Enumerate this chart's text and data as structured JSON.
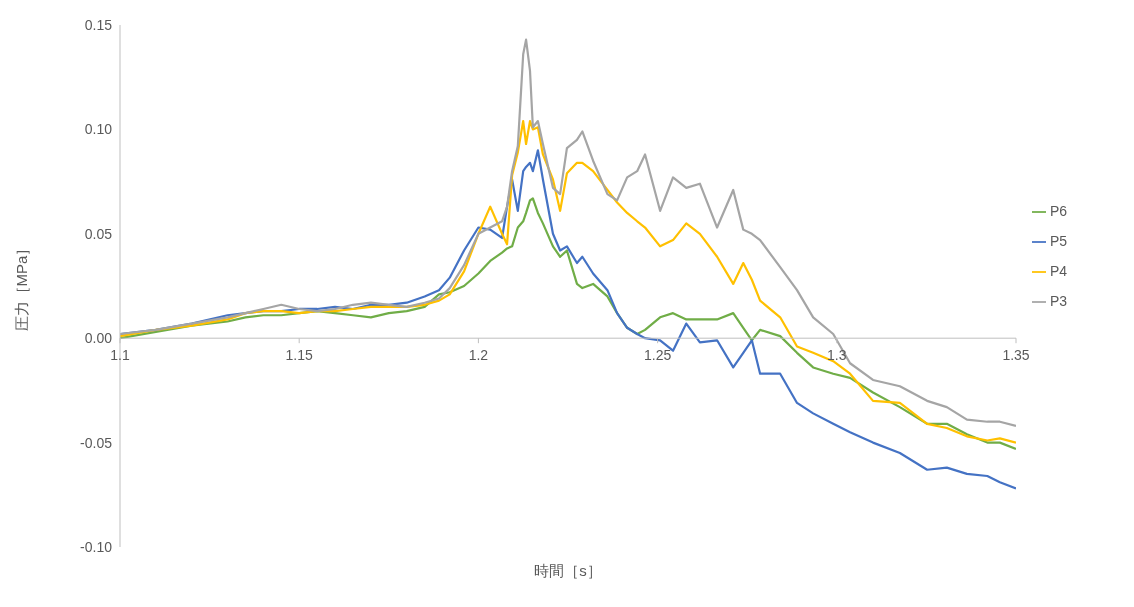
{
  "chart_data": {
    "type": "line",
    "xlabel": "時間［s］",
    "ylabel": "圧力［MPa］",
    "legend": "right",
    "xlim": [
      1.1,
      1.35
    ],
    "xticks": [
      1.1,
      1.15,
      1.2,
      1.25,
      1.3,
      1.35
    ],
    "ylim": [
      -0.1,
      0.15
    ],
    "yticks": [
      {
        "value": -0.1,
        "label": "-0.10"
      },
      {
        "value": -0.05,
        "label": "-0.05"
      },
      {
        "value": 0,
        "label": "0.00"
      },
      {
        "value": 0.05,
        "label": "0.05"
      },
      {
        "value": 0.1,
        "label": "0.10"
      },
      {
        "value": 0.15,
        "label": "0.15"
      }
    ],
    "x": [
      1.1,
      1.11,
      1.12,
      1.13,
      1.135,
      1.14,
      1.145,
      1.15,
      1.155,
      1.16,
      1.165,
      1.17,
      1.175,
      1.18,
      1.185,
      1.189,
      1.192,
      1.196,
      1.2,
      1.2033,
      1.2066,
      1.208,
      1.2094,
      1.211,
      1.2125,
      1.2133,
      1.2144,
      1.2152,
      1.2166,
      1.218,
      1.2208,
      1.2228,
      1.2247,
      1.2275,
      1.229,
      1.232,
      1.236,
      1.2387,
      1.2415,
      1.2443,
      1.2465,
      1.2507,
      1.2543,
      1.258,
      1.2618,
      1.2666,
      1.2711,
      1.2739,
      1.2763,
      1.2786,
      1.2842,
      1.2889,
      1.2934,
      1.299,
      1.3037,
      1.3101,
      1.3176,
      1.3252,
      1.3307,
      1.3363,
      1.342,
      1.3455,
      1.35
    ],
    "series": [
      {
        "name": "P6",
        "color": "#70ad47",
        "values": [
          0.0,
          0.003,
          0.006,
          0.008,
          0.01,
          0.011,
          0.011,
          0.012,
          0.013,
          0.012,
          0.011,
          0.01,
          0.012,
          0.013,
          0.015,
          0.021,
          0.022,
          0.025,
          0.031,
          0.037,
          0.041,
          0.043,
          0.044,
          0.053,
          0.056,
          0.06,
          0.066,
          0.067,
          0.06,
          0.055,
          0.044,
          0.039,
          0.042,
          0.026,
          0.024,
          0.026,
          0.02,
          0.012,
          0.005,
          0.002,
          0.004,
          0.01,
          0.012,
          0.009,
          0.009,
          0.009,
          0.012,
          0.005,
          -0.001,
          0.004,
          0.001,
          -0.007,
          -0.014,
          -0.017,
          -0.019,
          -0.026,
          -0.033,
          -0.041,
          -0.041,
          -0.046,
          -0.05,
          -0.05,
          -0.053
        ]
      },
      {
        "name": "P5",
        "color": "#4472c4",
        "values": [
          0.002,
          0.004,
          0.007,
          0.011,
          0.012,
          0.013,
          0.013,
          0.014,
          0.014,
          0.015,
          0.014,
          0.016,
          0.016,
          0.017,
          0.02,
          0.023,
          0.029,
          0.042,
          0.053,
          0.052,
          0.048,
          0.063,
          0.076,
          0.061,
          0.08,
          0.082,
          0.084,
          0.08,
          0.09,
          0.076,
          0.05,
          0.042,
          0.044,
          0.036,
          0.039,
          0.031,
          0.023,
          0.012,
          0.005,
          0.002,
          0.0,
          -0.001,
          -0.006,
          0.007,
          -0.002,
          -0.001,
          -0.014,
          -0.007,
          -0.001,
          -0.017,
          -0.017,
          -0.031,
          -0.036,
          -0.041,
          -0.045,
          -0.05,
          -0.055,
          -0.063,
          -0.062,
          -0.065,
          -0.066,
          -0.069,
          -0.072
        ]
      },
      {
        "name": "P4",
        "color": "#ffc000",
        "values": [
          0.001,
          0.004,
          0.006,
          0.009,
          0.012,
          0.013,
          0.013,
          0.012,
          0.013,
          0.013,
          0.014,
          0.015,
          0.015,
          0.015,
          0.016,
          0.018,
          0.021,
          0.032,
          0.05,
          0.063,
          0.05,
          0.045,
          0.078,
          0.089,
          0.104,
          0.093,
          0.104,
          0.1,
          0.101,
          0.088,
          0.076,
          0.061,
          0.079,
          0.084,
          0.084,
          0.08,
          0.071,
          0.065,
          0.06,
          0.056,
          0.053,
          0.044,
          0.047,
          0.055,
          0.05,
          0.039,
          0.026,
          0.036,
          0.028,
          0.018,
          0.01,
          -0.004,
          -0.007,
          -0.011,
          -0.017,
          -0.03,
          -0.031,
          -0.041,
          -0.043,
          -0.047,
          -0.049,
          -0.048,
          -0.05
        ]
      },
      {
        "name": "P3",
        "color": "#a5a5a5",
        "values": [
          0.002,
          0.004,
          0.007,
          0.01,
          0.012,
          0.014,
          0.016,
          0.014,
          0.013,
          0.014,
          0.016,
          0.017,
          0.016,
          0.015,
          0.017,
          0.019,
          0.024,
          0.035,
          0.05,
          0.053,
          0.056,
          0.063,
          0.08,
          0.092,
          0.136,
          0.143,
          0.128,
          0.101,
          0.104,
          0.093,
          0.072,
          0.069,
          0.091,
          0.095,
          0.099,
          0.085,
          0.069,
          0.066,
          0.077,
          0.08,
          0.088,
          0.061,
          0.077,
          0.072,
          0.074,
          0.053,
          0.071,
          0.052,
          0.05,
          0.047,
          0.034,
          0.023,
          0.01,
          0.002,
          -0.012,
          -0.02,
          -0.023,
          -0.03,
          -0.033,
          -0.039,
          -0.04,
          -0.04,
          -0.042
        ]
      }
    ]
  }
}
